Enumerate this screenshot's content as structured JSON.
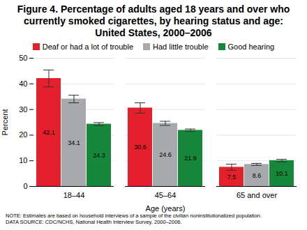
{
  "chart_data": {
    "type": "bar",
    "title": "Figure 4. Percentage of adults aged 18 years and over who currently smoked cigarettes, by hearing status and age: United States, 2000–2006",
    "x_label": "Age (years)",
    "y_label": "Percent",
    "categories": [
      "18–44",
      "45–64",
      "65 and over"
    ],
    "series": [
      {
        "name": "Deaf or had a lot of trouble",
        "color": "#e3202b",
        "values": [
          42.1,
          30.6,
          7.5
        ],
        "errors": [
          3.3,
          2.0,
          1.2
        ]
      },
      {
        "name": "Had little trouble",
        "color": "#a7a9ac",
        "values": [
          34.1,
          24.6,
          8.6
        ],
        "errors": [
          1.5,
          0.8,
          0.4
        ]
      },
      {
        "name": "Good hearing",
        "color": "#17873b",
        "values": [
          24.3,
          21.9,
          10.1
        ],
        "errors": [
          0.6,
          0.5,
          0.5
        ]
      }
    ],
    "ylim": [
      0,
      50
    ],
    "yticks": [
      0,
      10,
      20,
      30,
      40,
      50
    ],
    "grid": true,
    "legend": "top",
    "data_labels": true,
    "notes": [
      "NOTE: Estimates are based on household interviews of a sample of the civilian noninstitutionalized population.",
      "DATA SOURCE: CDC/NCHS, National Health Interview Survey, 2000–2006."
    ]
  }
}
